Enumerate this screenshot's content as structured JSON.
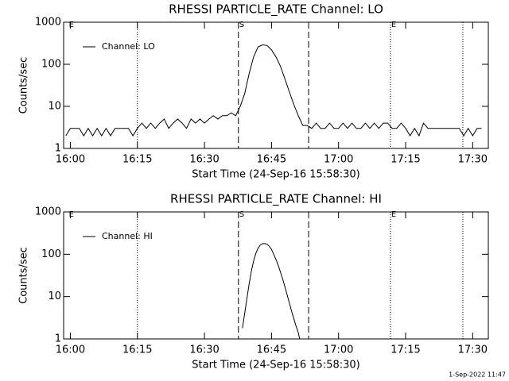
{
  "chart_data": [
    {
      "type": "line",
      "title": "RHESSI PARTICLE_RATE Channel: LO",
      "xlabel": "Start Time (24-Sep-16 15:58:30)",
      "ylabel": "Counts/sec",
      "log_y": true,
      "legend": "upper left",
      "xlim": [
        -1.5,
        93.5
      ],
      "ylim": [
        1,
        1000
      ],
      "xticks": [
        {
          "value": 0,
          "label": "16:00"
        },
        {
          "value": 15,
          "label": "16:15"
        },
        {
          "value": 30,
          "label": "16:30"
        },
        {
          "value": 45,
          "label": "16:45"
        },
        {
          "value": 60,
          "label": "17:00"
        },
        {
          "value": 75,
          "label": "17:15"
        },
        {
          "value": 90,
          "label": "17:30"
        }
      ],
      "yticks": [
        1,
        10,
        100,
        1000
      ],
      "vlines": [
        {
          "x": 15,
          "style": "dotted"
        },
        {
          "x": 37.6,
          "style": "dashed"
        },
        {
          "x": 53.3,
          "style": "dashed"
        },
        {
          "x": 71.6,
          "style": "dotted"
        },
        {
          "x": 87.8,
          "style": "dotted"
        }
      ],
      "annotations": [
        {
          "x": -0.5,
          "text": "E"
        },
        {
          "x": 37.6,
          "text": "S"
        },
        {
          "x": 71.6,
          "text": "E"
        }
      ],
      "x": [
        -1,
        0,
        1,
        2,
        3,
        4,
        5,
        6,
        7,
        8,
        9,
        10,
        11,
        12,
        13,
        14,
        15,
        16,
        17,
        18,
        19,
        20,
        21,
        22,
        23,
        24,
        25,
        26,
        27,
        28,
        29,
        30,
        31,
        32,
        33,
        34,
        35,
        36,
        37,
        38,
        39,
        40,
        41,
        42,
        43,
        44,
        45,
        46,
        47,
        48,
        49,
        50,
        51,
        52,
        53,
        54,
        55,
        56,
        57,
        58,
        59,
        60,
        61,
        62,
        63,
        64,
        65,
        66,
        67,
        68,
        69,
        70,
        71,
        72,
        73,
        74,
        75,
        76,
        77,
        78,
        79,
        80,
        81,
        82,
        83,
        84,
        85,
        86,
        87,
        88,
        89,
        90,
        91,
        92
      ],
      "series": [
        {
          "name": "Channel: LO",
          "color": "#000000",
          "values": [
            2,
            3,
            3,
            3,
            2,
            3,
            2,
            3,
            2,
            3,
            2,
            3,
            3,
            3,
            3,
            2,
            3,
            4,
            3,
            4,
            3,
            4,
            5,
            3,
            4,
            5,
            4,
            3,
            5,
            4,
            5,
            4,
            5,
            6,
            5,
            6,
            6,
            7,
            6,
            10,
            20,
            60,
            150,
            260,
            290,
            280,
            220,
            150,
            90,
            45,
            22,
            11,
            6,
            3.5,
            3.5,
            3,
            4,
            3,
            3,
            4,
            3,
            3,
            4,
            3,
            4,
            3,
            3,
            4,
            3,
            4,
            3,
            4,
            4,
            3,
            3,
            4,
            3,
            2,
            3,
            2,
            4,
            3,
            3,
            3,
            3,
            3,
            3,
            3,
            3,
            2,
            3,
            2,
            3,
            3
          ]
        }
      ]
    },
    {
      "type": "line",
      "title": "RHESSI PARTICLE_RATE Channel: HI",
      "xlabel": "Start Time (24-Sep-16 15:58:30)",
      "ylabel": "Counts/sec",
      "log_y": true,
      "legend": "upper left",
      "xlim": [
        -1.5,
        93.5
      ],
      "ylim": [
        1,
        1000
      ],
      "xticks": [
        {
          "value": 0,
          "label": "16:00"
        },
        {
          "value": 15,
          "label": "16:15"
        },
        {
          "value": 30,
          "label": "16:30"
        },
        {
          "value": 45,
          "label": "16:45"
        },
        {
          "value": 60,
          "label": "17:00"
        },
        {
          "value": 75,
          "label": "17:15"
        },
        {
          "value": 90,
          "label": "17:30"
        }
      ],
      "yticks": [
        1,
        10,
        100,
        1000
      ],
      "vlines": [
        {
          "x": 15,
          "style": "dotted"
        },
        {
          "x": 37.6,
          "style": "dashed"
        },
        {
          "x": 53.3,
          "style": "dashed"
        },
        {
          "x": 71.6,
          "style": "dotted"
        },
        {
          "x": 87.8,
          "style": "dotted"
        }
      ],
      "annotations": [
        {
          "x": -0.5,
          "text": "E"
        },
        {
          "x": 37.6,
          "text": "S"
        },
        {
          "x": 71.6,
          "text": "E"
        }
      ],
      "x": [
        38.5,
        39,
        39.5,
        40,
        40.5,
        41,
        41.5,
        42,
        42.5,
        43,
        43.5,
        44,
        44.5,
        45,
        45.5,
        46,
        46.5,
        47,
        47.5,
        48,
        48.5,
        49,
        49.5,
        50,
        50.5,
        51,
        51.3
      ],
      "series": [
        {
          "name": "Channel: HI",
          "color": "#000000",
          "values": [
            1.8,
            4,
            9,
            20,
            40,
            70,
            105,
            140,
            165,
            178,
            180,
            172,
            155,
            130,
            100,
            75,
            55,
            38,
            26,
            17,
            11,
            7,
            4.5,
            3,
            2,
            1.4,
            1
          ]
        }
      ]
    }
  ],
  "footer": "1-Sep-2022 11:47"
}
